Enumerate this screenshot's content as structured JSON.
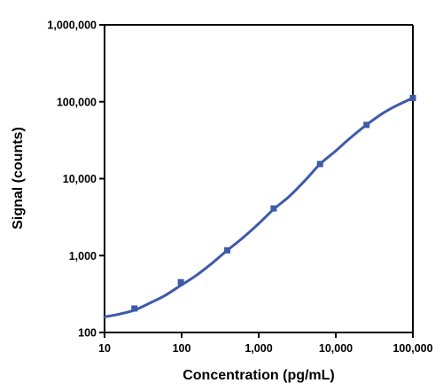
{
  "chart_data": {
    "type": "scatter",
    "xlabel": "Concentration (pg/mL)",
    "ylabel": "Signal (counts)",
    "x_scale": "log",
    "y_scale": "log",
    "xlim": [
      10,
      100000
    ],
    "ylim": [
      100,
      1000000
    ],
    "x_ticks": [
      10,
      100,
      1000,
      10000,
      100000
    ],
    "x_tick_labels": [
      "10",
      "100",
      "1,000",
      "10,000",
      "100,000"
    ],
    "y_ticks": [
      100,
      1000,
      10000,
      100000,
      1000000
    ],
    "y_tick_labels": [
      "100",
      "1,000",
      "10,000",
      "100,000",
      "1,000,000"
    ],
    "grid": false,
    "series": [
      {
        "marker": "square",
        "color": "#3f5aa8",
        "x": [
          24.4,
          97.7,
          390.6,
          1562.5,
          6250,
          25000,
          100000
        ],
        "y": [
          205,
          450,
          1170,
          4100,
          15500,
          50000,
          112000
        ]
      }
    ],
    "fit_curve": {
      "style": "smooth line through points",
      "color": "#3f5aa8",
      "x": [
        10,
        15,
        24.4,
        40,
        60,
        97.7,
        150,
        250,
        390.6,
        600,
        1000,
        1562.5,
        2500,
        4000,
        6250,
        10000,
        15000,
        25000,
        40000,
        60000,
        100000
      ],
      "y": [
        160,
        172,
        195,
        245,
        300,
        410,
        540,
        800,
        1170,
        1650,
        2600,
        4000,
        5900,
        9500,
        15500,
        23000,
        33000,
        50000,
        70000,
        88000,
        112000
      ]
    }
  }
}
